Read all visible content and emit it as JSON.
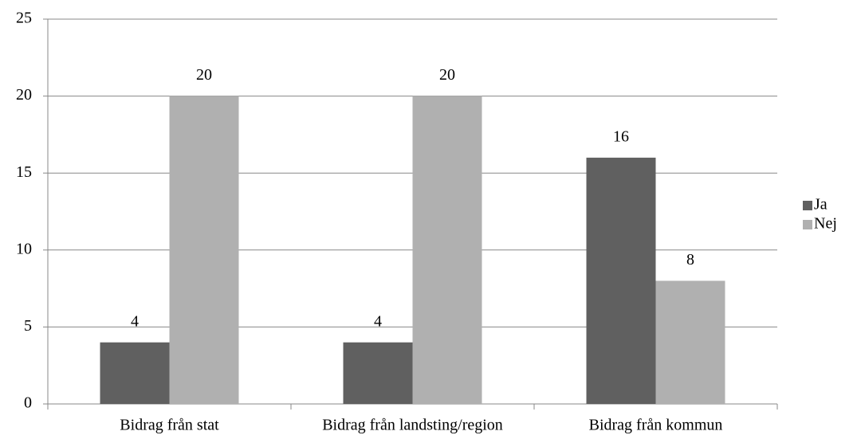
{
  "chart_data": {
    "type": "bar",
    "categories": [
      "Bidrag från stat",
      "Bidrag från landsting/region",
      "Bidrag från kommun"
    ],
    "series": [
      {
        "name": "Ja",
        "color": "#606060",
        "values": [
          4,
          4,
          16
        ]
      },
      {
        "name": "Nej",
        "color": "#b0b0b0",
        "values": [
          20,
          20,
          8
        ]
      }
    ],
    "ylim": [
      0,
      25
    ],
    "yticks": [
      0,
      5,
      10,
      15,
      20,
      25
    ],
    "grid": true,
    "legend": "right"
  }
}
